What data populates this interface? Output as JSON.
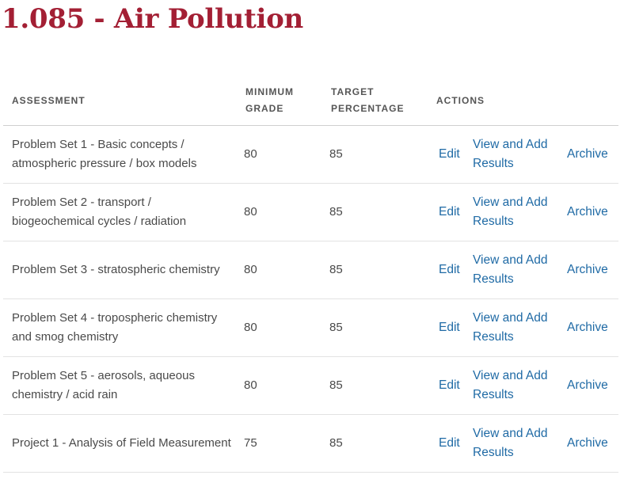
{
  "page": {
    "title": "1.085 - Air Pollution"
  },
  "table": {
    "headers": {
      "assessment": "ASSESSMENT",
      "minimum_line1": "MINIMUM",
      "minimum_line2": "GRADE",
      "target_line1": "TARGET",
      "target_line2": "PERCENTAGE",
      "actions": "ACTIONS"
    },
    "rows": [
      {
        "name": "Problem Set 1 - Basic concepts / atmospheric pressure / box models",
        "minimum_grade": "80",
        "target_percentage": "85",
        "edit_label": "Edit",
        "view_label": "View and Add Results",
        "archive_label": "Archive"
      },
      {
        "name": "Problem Set 2 - transport / biogeochemical cycles / radiation",
        "minimum_grade": "80",
        "target_percentage": "85",
        "edit_label": "Edit",
        "view_label": "View and Add Results",
        "archive_label": "Archive"
      },
      {
        "name": "Problem Set 3 - stratospheric chemistry",
        "minimum_grade": "80",
        "target_percentage": "85",
        "edit_label": "Edit",
        "view_label": "View and Add Results",
        "archive_label": "Archive"
      },
      {
        "name": "Problem Set 4 - tropospheric chemistry and smog chemistry",
        "minimum_grade": "80",
        "target_percentage": "85",
        "edit_label": "Edit",
        "view_label": "View and Add Results",
        "archive_label": "Archive"
      },
      {
        "name": "Problem Set 5 - aerosols, aqueous chemistry / acid rain",
        "minimum_grade": "80",
        "target_percentage": "85",
        "edit_label": "Edit",
        "view_label": "View and Add Results",
        "archive_label": "Archive"
      },
      {
        "name": "Project 1 - Analysis of Field Measurement",
        "minimum_grade": "75",
        "target_percentage": "85",
        "edit_label": "Edit",
        "view_label": "View and Add Results",
        "archive_label": "Archive"
      }
    ]
  },
  "colors": {
    "title": "#a31f34",
    "link": "#1f6aa5",
    "text": "#4a4a4a",
    "header_text": "#555555"
  }
}
